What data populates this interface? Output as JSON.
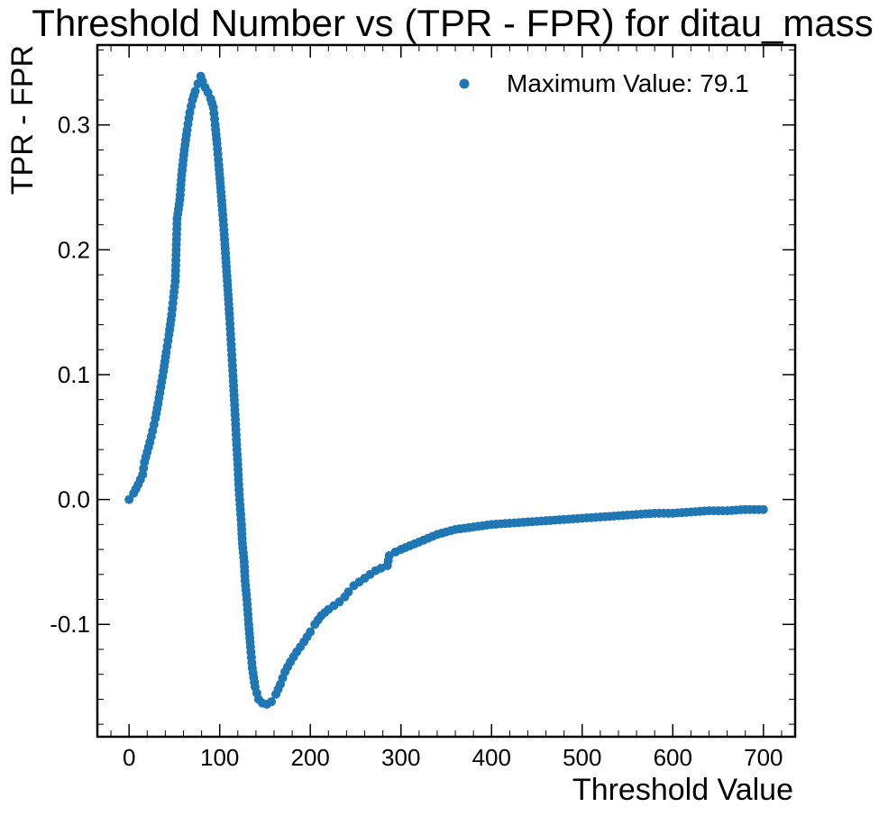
{
  "chart_data": {
    "type": "scatter",
    "title": "Threshold Number vs (TPR - FPR) for ditau_mass",
    "xlabel": "Threshold Value",
    "ylabel": "TPR - FPR",
    "xlim": [
      -35,
      735
    ],
    "ylim": [
      -0.19,
      0.364
    ],
    "xticks": [
      0,
      100,
      200,
      300,
      400,
      500,
      600,
      700
    ],
    "xtick_labels": [
      "0",
      "100",
      "200",
      "300",
      "400",
      "500",
      "600",
      "700"
    ],
    "yticks": [
      -0.1,
      0.0,
      0.1,
      0.2,
      0.3
    ],
    "ytick_labels": [
      "-0.1",
      "0.0",
      "0.1",
      "0.2",
      "0.3"
    ],
    "grid": false,
    "legend_position": "top-right",
    "series": [
      {
        "name": "Maximum Value: 79.1",
        "color": "#1f77b4",
        "marker": "circle",
        "points": [
          [
            0,
            0.0
          ],
          [
            5,
            0.005
          ],
          [
            10,
            0.012
          ],
          [
            15,
            0.02
          ],
          [
            17,
            0.03
          ],
          [
            20,
            0.038
          ],
          [
            23,
            0.046
          ],
          [
            26,
            0.055
          ],
          [
            29,
            0.065
          ],
          [
            32,
            0.077
          ],
          [
            35,
            0.09
          ],
          [
            38,
            0.103
          ],
          [
            41,
            0.118
          ],
          [
            44,
            0.132
          ],
          [
            47,
            0.148
          ],
          [
            49,
            0.162
          ],
          [
            51,
            0.175
          ],
          [
            52,
            0.2
          ],
          [
            53,
            0.225
          ],
          [
            56,
            0.24
          ],
          [
            58,
            0.26
          ],
          [
            61,
            0.28
          ],
          [
            64,
            0.296
          ],
          [
            67,
            0.31
          ],
          [
            70,
            0.32
          ],
          [
            73,
            0.327
          ],
          [
            76,
            0.333
          ],
          [
            79.1,
            0.339
          ],
          [
            81,
            0.335
          ],
          [
            84,
            0.33
          ],
          [
            87,
            0.326
          ],
          [
            90,
            0.321
          ],
          [
            93,
            0.314
          ],
          [
            95,
            0.3
          ],
          [
            97,
            0.285
          ],
          [
            99,
            0.268
          ],
          [
            101,
            0.25
          ],
          [
            103,
            0.232
          ],
          [
            105,
            0.212
          ],
          [
            107,
            0.19
          ],
          [
            109,
            0.168
          ],
          [
            111,
            0.145
          ],
          [
            113,
            0.12
          ],
          [
            115,
            0.095
          ],
          [
            117,
            0.068
          ],
          [
            119,
            0.04
          ],
          [
            120,
            0.028
          ],
          [
            121,
            0.012
          ],
          [
            122,
            0.0
          ],
          [
            124,
            -0.02
          ],
          [
            125,
            -0.035
          ],
          [
            127,
            -0.05
          ],
          [
            128,
            -0.065
          ],
          [
            130,
            -0.08
          ],
          [
            132,
            -0.1
          ],
          [
            134,
            -0.118
          ],
          [
            136,
            -0.135
          ],
          [
            139,
            -0.15
          ],
          [
            143,
            -0.16
          ],
          [
            147,
            -0.163
          ],
          [
            152,
            -0.164
          ],
          [
            157,
            -0.162
          ],
          [
            162,
            -0.156
          ],
          [
            167,
            -0.148
          ],
          [
            172,
            -0.138
          ],
          [
            178,
            -0.13
          ],
          [
            185,
            -0.122
          ],
          [
            193,
            -0.114
          ],
          [
            200,
            -0.106
          ],
          [
            205,
            -0.1
          ],
          [
            212,
            -0.093
          ],
          [
            220,
            -0.088
          ],
          [
            226,
            -0.085
          ],
          [
            232,
            -0.082
          ],
          [
            238,
            -0.078
          ],
          [
            242,
            -0.074
          ],
          [
            248,
            -0.069
          ],
          [
            254,
            -0.066
          ],
          [
            260,
            -0.063
          ],
          [
            266,
            -0.06
          ],
          [
            272,
            -0.057
          ],
          [
            278,
            -0.055
          ],
          [
            285,
            -0.053
          ],
          [
            287,
            -0.045
          ],
          [
            294,
            -0.042
          ],
          [
            300,
            -0.04
          ],
          [
            310,
            -0.037
          ],
          [
            320,
            -0.034
          ],
          [
            330,
            -0.031
          ],
          [
            340,
            -0.028
          ],
          [
            350,
            -0.026
          ],
          [
            360,
            -0.024
          ],
          [
            370,
            -0.023
          ],
          [
            380,
            -0.022
          ],
          [
            390,
            -0.021
          ],
          [
            400,
            -0.02
          ],
          [
            420,
            -0.019
          ],
          [
            440,
            -0.018
          ],
          [
            460,
            -0.017
          ],
          [
            480,
            -0.016
          ],
          [
            500,
            -0.015
          ],
          [
            520,
            -0.014
          ],
          [
            540,
            -0.013
          ],
          [
            560,
            -0.012
          ],
          [
            580,
            -0.011
          ],
          [
            600,
            -0.011
          ],
          [
            620,
            -0.01
          ],
          [
            640,
            -0.009
          ],
          [
            660,
            -0.009
          ],
          [
            680,
            -0.008
          ],
          [
            700,
            -0.008
          ]
        ]
      }
    ]
  }
}
